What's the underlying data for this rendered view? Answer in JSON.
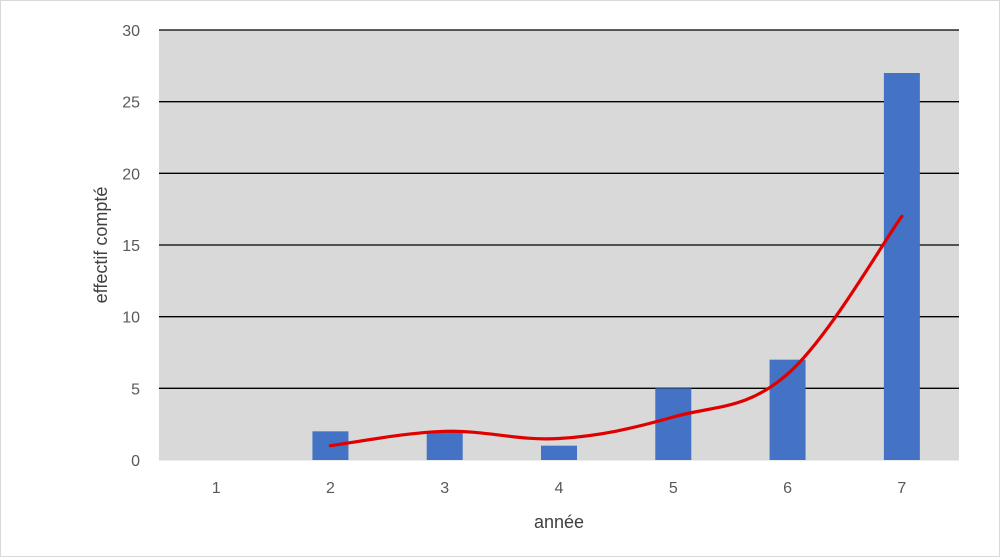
{
  "chart_data": {
    "type": "bar",
    "categories": [
      "1",
      "2",
      "3",
      "4",
      "5",
      "6",
      "7"
    ],
    "series": [
      {
        "type": "bar",
        "values": [
          0,
          2,
          2,
          1,
          5,
          7,
          27
        ],
        "color": "#4472c4"
      },
      {
        "type": "line",
        "values": [
          null,
          1,
          2,
          1.5,
          3,
          6,
          17
        ],
        "color": "#e00000"
      }
    ],
    "xlabel": "année",
    "ylabel": "effectif compté",
    "ylim": [
      0,
      30
    ],
    "yticks": [
      "0",
      "5",
      "10",
      "15",
      "20",
      "25",
      "30"
    ],
    "grid": true,
    "plot_background": "#d9d9d9"
  }
}
